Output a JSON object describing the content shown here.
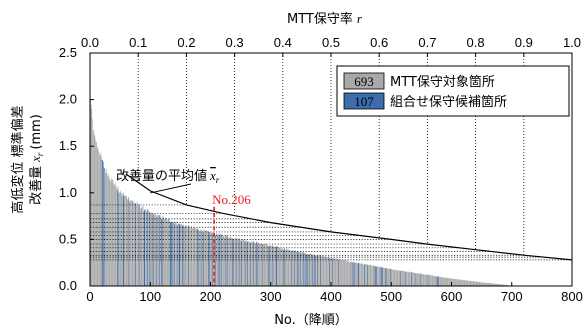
{
  "chart_data": {
    "type": "bar",
    "xlabel": "No.（降順）",
    "x2label": "MTT保守率",
    "x2label_var": "r",
    "ylabel_line1": "高低変位 標準偏差",
    "ylabel_line2": "改善量",
    "ylabel_var": "x",
    "ylabel_sub": "r",
    "ylabel_unit": "(mm)",
    "xlim": [
      0,
      800
    ],
    "ylim": [
      0,
      2.5
    ],
    "x2lim": [
      0,
      1.0
    ],
    "x_ticks": [
      "0",
      "100",
      "200",
      "300",
      "400",
      "500",
      "600",
      "700",
      "800"
    ],
    "y_ticks": [
      "0.0",
      "0.5",
      "1.0",
      "1.5",
      "2.0",
      "2.5"
    ],
    "x2_ticks": [
      "0.0",
      "0.1",
      "0.2",
      "0.3",
      "0.4",
      "0.5",
      "0.6",
      "0.7",
      "0.8",
      "0.9",
      "1.0"
    ],
    "grid": "vertical dotted at each top-axis tick",
    "colors": {
      "all_bars": "#a9a9a9",
      "combined_bars": "#3d6dab",
      "highlight": "#e41e25",
      "line": "#000000"
    },
    "series": [
      {
        "name": "MTT保守対象箇所",
        "count_label": "693",
        "n": 693,
        "distribution_points": [
          [
            1,
            2.0
          ],
          [
            5,
            1.7
          ],
          [
            10,
            1.55
          ],
          [
            25,
            1.25
          ],
          [
            50,
            1.0
          ],
          [
            100,
            0.78
          ],
          [
            150,
            0.66
          ],
          [
            200,
            0.57
          ],
          [
            250,
            0.5
          ],
          [
            300,
            0.43
          ],
          [
            350,
            0.36
          ],
          [
            400,
            0.3
          ],
          [
            450,
            0.24
          ],
          [
            500,
            0.18
          ],
          [
            550,
            0.13
          ],
          [
            600,
            0.08
          ],
          [
            650,
            0.04
          ],
          [
            693,
            0.01
          ]
        ]
      },
      {
        "name": "組合せ保守候補箇所",
        "count_label": "107",
        "n": 107
      },
      {
        "name": "改善量の平均値",
        "var": "x",
        "var_sub": "r",
        "type": "line",
        "x": [
          60,
          100,
          160,
          220,
          300,
          400,
          500,
          560,
          640,
          720,
          800
        ],
        "y": [
          1.2,
          1.02,
          0.87,
          0.78,
          0.68,
          0.58,
          0.5,
          0.45,
          0.39,
          0.33,
          0.28
        ]
      }
    ],
    "annotations": [
      {
        "text": "No.206",
        "x": 206,
        "y_top": 0.85
      }
    ],
    "average_reference_levels": [
      0.87,
      0.78,
      0.72,
      0.68,
      0.63,
      0.58,
      0.54,
      0.5,
      0.45,
      0.41,
      0.37,
      0.33,
      0.31,
      0.28
    ]
  }
}
